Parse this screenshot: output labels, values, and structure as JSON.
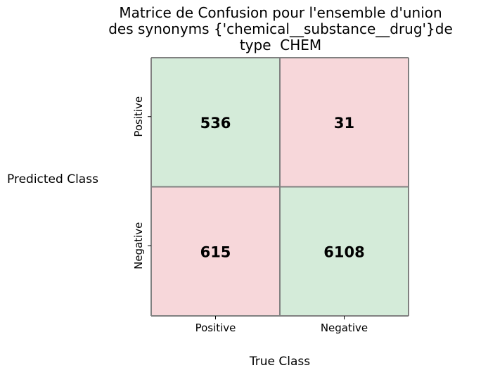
{
  "chart_data": {
    "type": "heatmap",
    "title_lines": [
      "Matrice de Confusion pour l'ensemble d'union",
      "des synonyms {'chemical__substance__drug'}de",
      "type  CHEM"
    ],
    "xlabel": "True Class",
    "ylabel": "Predicted Class",
    "x_categories": [
      "Positive",
      "Negative"
    ],
    "y_categories": [
      "Positive",
      "Negative"
    ],
    "values": [
      [
        536,
        31
      ],
      [
        615,
        6108
      ]
    ],
    "cell_colors": [
      [
        "#d4ebd9",
        "#f7d7da"
      ],
      [
        "#f7d7da",
        "#d4ebd9"
      ]
    ],
    "border_color": "#808080"
  }
}
